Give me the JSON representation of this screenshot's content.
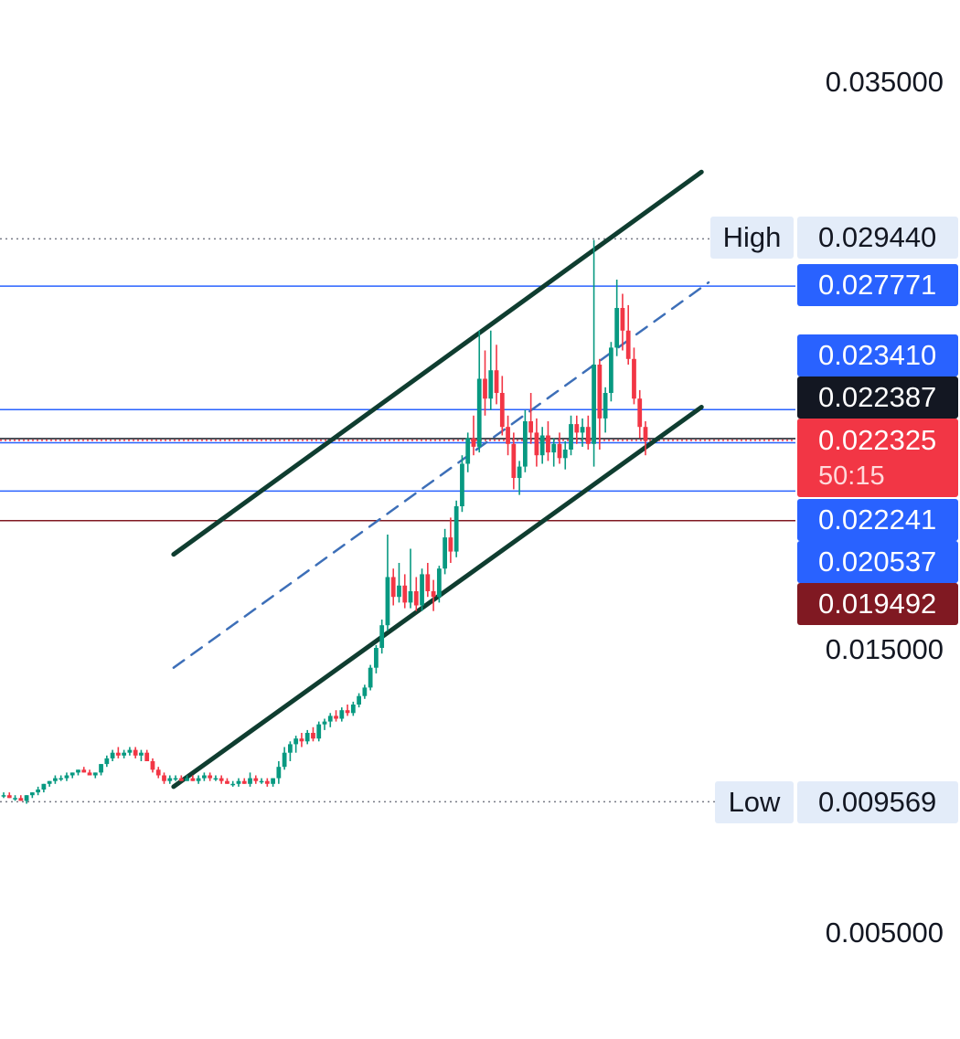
{
  "chart_data": {
    "type": "candlestick",
    "y_axis": {
      "ticks": [
        "0.035000",
        "0.015000",
        "0.005000"
      ],
      "range": [
        0.0032,
        0.0375
      ]
    },
    "high": {
      "label": "High",
      "value": "0.029440"
    },
    "low": {
      "label": "Low",
      "value": "0.009569"
    },
    "price_levels": [
      {
        "value": "0.027771",
        "color": "#2962ff"
      },
      {
        "value": "0.023410",
        "color": "#2962ff"
      },
      {
        "value": "0.022387",
        "color": "#131722"
      },
      {
        "value": "0.022241",
        "color": "#2962ff"
      },
      {
        "value": "0.020537",
        "color": "#2962ff"
      },
      {
        "value": "0.019492",
        "color": "#801922"
      }
    ],
    "current_price": {
      "value": "0.022325",
      "countdown": "50:15",
      "color": "#f23645"
    },
    "colors": {
      "up": "#089981",
      "down": "#f23645",
      "channel": "#0f3d30",
      "midline": "#3d6fb8"
    },
    "channel": {
      "upper": [
        [
          0.245,
          0.0183
        ],
        [
          0.99,
          0.0318
        ]
      ],
      "lower": [
        [
          0.245,
          0.0101
        ],
        [
          0.99,
          0.0235
        ]
      ],
      "middle": [
        [
          0.245,
          0.0143
        ],
        [
          1.0,
          0.0279
        ]
      ]
    },
    "series": {
      "comment_units": "x is candle index position (0..1 of visible range); values are price",
      "ohlc": [
        [
          0.0098,
          0.0099,
          0.0097,
          0.0098
        ],
        [
          0.0098,
          0.0099,
          0.0097,
          0.0097
        ],
        [
          0.0097,
          0.0098,
          0.0096,
          0.0097
        ],
        [
          0.0097,
          0.0098,
          0.0096,
          0.0096
        ],
        [
          0.0096,
          0.0098,
          0.0095,
          0.0098
        ],
        [
          0.0098,
          0.0099,
          0.0097,
          0.0099
        ],
        [
          0.0099,
          0.0101,
          0.0098,
          0.01
        ],
        [
          0.01,
          0.0102,
          0.0099,
          0.0102
        ],
        [
          0.0102,
          0.0103,
          0.0101,
          0.0103
        ],
        [
          0.0103,
          0.0105,
          0.0102,
          0.0104
        ],
        [
          0.0104,
          0.0105,
          0.0103,
          0.0104
        ],
        [
          0.0104,
          0.0106,
          0.0103,
          0.0105
        ],
        [
          0.0105,
          0.0106,
          0.0104,
          0.0106
        ],
        [
          0.0106,
          0.0107,
          0.0105,
          0.0107
        ],
        [
          0.0107,
          0.0108,
          0.0106,
          0.0106
        ],
        [
          0.0106,
          0.0107,
          0.0105,
          0.0105
        ],
        [
          0.0105,
          0.0106,
          0.0104,
          0.0106
        ],
        [
          0.0106,
          0.0109,
          0.0105,
          0.0109
        ],
        [
          0.0109,
          0.0112,
          0.0108,
          0.0111
        ],
        [
          0.0111,
          0.0114,
          0.011,
          0.0113
        ],
        [
          0.0113,
          0.0115,
          0.0111,
          0.0112
        ],
        [
          0.0112,
          0.0114,
          0.0111,
          0.0113
        ],
        [
          0.0113,
          0.0115,
          0.0112,
          0.0114
        ],
        [
          0.0114,
          0.0115,
          0.0111,
          0.0112
        ],
        [
          0.0112,
          0.0114,
          0.011,
          0.0113
        ],
        [
          0.0113,
          0.0114,
          0.011,
          0.011
        ],
        [
          0.011,
          0.0111,
          0.0106,
          0.0107
        ],
        [
          0.0107,
          0.0108,
          0.0104,
          0.0105
        ],
        [
          0.0105,
          0.0106,
          0.0102,
          0.0103
        ],
        [
          0.0103,
          0.0105,
          0.0102,
          0.0104
        ],
        [
          0.0104,
          0.0105,
          0.0103,
          0.0104
        ],
        [
          0.0104,
          0.0105,
          0.0103,
          0.0103
        ],
        [
          0.0103,
          0.0105,
          0.0103,
          0.0104
        ],
        [
          0.0104,
          0.0105,
          0.0103,
          0.0103
        ],
        [
          0.0103,
          0.0105,
          0.0102,
          0.0104
        ],
        [
          0.0104,
          0.0106,
          0.0103,
          0.0105
        ],
        [
          0.0105,
          0.0106,
          0.0103,
          0.0104
        ],
        [
          0.0104,
          0.0105,
          0.0103,
          0.0104
        ],
        [
          0.0104,
          0.0105,
          0.0102,
          0.0103
        ],
        [
          0.0103,
          0.0104,
          0.0102,
          0.0102
        ],
        [
          0.0102,
          0.0103,
          0.0101,
          0.0102
        ],
        [
          0.0102,
          0.0104,
          0.0101,
          0.0103
        ],
        [
          0.0103,
          0.0104,
          0.0102,
          0.0102
        ],
        [
          0.0102,
          0.0106,
          0.0101,
          0.0104
        ],
        [
          0.0104,
          0.0105,
          0.0102,
          0.0103
        ],
        [
          0.0103,
          0.0104,
          0.0102,
          0.0103
        ],
        [
          0.0103,
          0.0104,
          0.0101,
          0.0102
        ],
        [
          0.0102,
          0.0104,
          0.0101,
          0.0104
        ],
        [
          0.0104,
          0.011,
          0.0102,
          0.0108
        ],
        [
          0.0108,
          0.0115,
          0.0107,
          0.0113
        ],
        [
          0.0113,
          0.0117,
          0.011,
          0.0116
        ],
        [
          0.0116,
          0.0119,
          0.0113,
          0.0118
        ],
        [
          0.0118,
          0.012,
          0.0115,
          0.0117
        ],
        [
          0.0117,
          0.0121,
          0.0116,
          0.012
        ],
        [
          0.012,
          0.0122,
          0.0117,
          0.0118
        ],
        [
          0.0118,
          0.0124,
          0.0117,
          0.0123
        ],
        [
          0.0123,
          0.0125,
          0.0121,
          0.0124
        ],
        [
          0.0124,
          0.0127,
          0.0122,
          0.0126
        ],
        [
          0.0126,
          0.0128,
          0.0124,
          0.0125
        ],
        [
          0.0125,
          0.0129,
          0.0124,
          0.0128
        ],
        [
          0.0128,
          0.013,
          0.0126,
          0.0127
        ],
        [
          0.0127,
          0.0131,
          0.0126,
          0.013
        ],
        [
          0.013,
          0.0134,
          0.0129,
          0.0133
        ],
        [
          0.0133,
          0.0137,
          0.0132,
          0.0136
        ],
        [
          0.0136,
          0.0144,
          0.0135,
          0.0143
        ],
        [
          0.0143,
          0.0151,
          0.0141,
          0.015
        ],
        [
          0.015,
          0.016,
          0.0148,
          0.0158
        ],
        [
          0.0158,
          0.019,
          0.0156,
          0.0175
        ],
        [
          0.0175,
          0.0178,
          0.0165,
          0.0168
        ],
        [
          0.0168,
          0.018,
          0.0166,
          0.0172
        ],
        [
          0.0172,
          0.0176,
          0.0164,
          0.0166
        ],
        [
          0.0166,
          0.0185,
          0.0164,
          0.017
        ],
        [
          0.017,
          0.0175,
          0.0163,
          0.0165
        ],
        [
          0.0165,
          0.0178,
          0.0163,
          0.0176
        ],
        [
          0.0176,
          0.018,
          0.0168,
          0.017
        ],
        [
          0.017,
          0.0174,
          0.0163,
          0.0168
        ],
        [
          0.0168,
          0.0179,
          0.0166,
          0.0178
        ],
        [
          0.0178,
          0.0192,
          0.0176,
          0.0189
        ],
        [
          0.0189,
          0.0196,
          0.018,
          0.0184
        ],
        [
          0.0184,
          0.0202,
          0.0182,
          0.02
        ],
        [
          0.02,
          0.0218,
          0.0198,
          0.0215
        ],
        [
          0.0215,
          0.0226,
          0.0212,
          0.0224
        ],
        [
          0.0224,
          0.0232,
          0.0218,
          0.0221
        ],
        [
          0.0221,
          0.0262,
          0.0219,
          0.0245
        ],
        [
          0.0245,
          0.0255,
          0.0232,
          0.0238
        ],
        [
          0.0238,
          0.0262,
          0.0234,
          0.0248
        ],
        [
          0.0248,
          0.0257,
          0.0236,
          0.024
        ],
        [
          0.024,
          0.0246,
          0.0225,
          0.0228
        ],
        [
          0.0228,
          0.0232,
          0.0218,
          0.0222
        ],
        [
          0.0222,
          0.0226,
          0.0206,
          0.021
        ],
        [
          0.021,
          0.0216,
          0.0204,
          0.0214
        ],
        [
          0.0214,
          0.0234,
          0.0212,
          0.023
        ],
        [
          0.023,
          0.024,
          0.0222,
          0.0226
        ],
        [
          0.0226,
          0.0231,
          0.0214,
          0.0218
        ],
        [
          0.0218,
          0.0228,
          0.0215,
          0.0225
        ],
        [
          0.0225,
          0.023,
          0.0216,
          0.0219
        ],
        [
          0.0219,
          0.0224,
          0.0214,
          0.0222
        ],
        [
          0.0222,
          0.0226,
          0.0215,
          0.0217
        ],
        [
          0.0217,
          0.0223,
          0.0213,
          0.022
        ],
        [
          0.022,
          0.0232,
          0.0218,
          0.0229
        ],
        [
          0.0229,
          0.0232,
          0.0222,
          0.0226
        ],
        [
          0.0226,
          0.0231,
          0.0221,
          0.0228
        ],
        [
          0.0228,
          0.0232,
          0.022,
          0.0222
        ],
        [
          0.0222,
          0.0294,
          0.0214,
          0.025
        ],
        [
          0.025,
          0.0252,
          0.022,
          0.0231
        ],
        [
          0.0231,
          0.0242,
          0.0226,
          0.024
        ],
        [
          0.024,
          0.0258,
          0.0237,
          0.0256
        ],
        [
          0.0256,
          0.028,
          0.0253,
          0.027
        ],
        [
          0.027,
          0.0275,
          0.0255,
          0.0262
        ],
        [
          0.0262,
          0.0271,
          0.025,
          0.0252
        ],
        [
          0.0252,
          0.0256,
          0.0236,
          0.0238
        ],
        [
          0.0238,
          0.0241,
          0.0224,
          0.0228
        ],
        [
          0.0228,
          0.023,
          0.0218,
          0.0223
        ]
      ]
    }
  }
}
